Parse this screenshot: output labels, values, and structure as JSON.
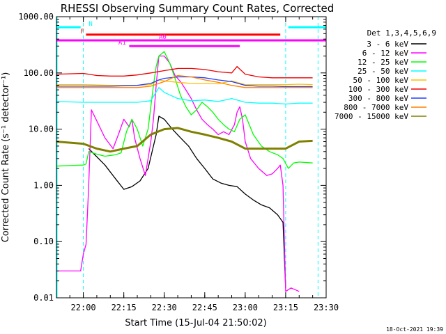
{
  "chart_data": {
    "type": "line",
    "title": "RHESSI Observing Summary Count Rates, Corrected",
    "xlabel": "Start Time (15-Jul-04 21:50:02)",
    "ylabel": "Corrected Count Rate (s⁻¹ detector⁻¹)",
    "yscale": "log",
    "ylim": [
      0.01,
      1000
    ],
    "xlim": [
      "21:50:02",
      "23:30"
    ],
    "x_ticks": [
      "22:00",
      "22:15",
      "22:30",
      "22:45",
      "23:00",
      "23:15",
      "23:30"
    ],
    "y_ticks": [
      "1000.00",
      "100.00",
      "10.00",
      "1.00",
      "0.10",
      "0.01"
    ],
    "legend_title": "Det 1,3,4,5,6,9",
    "legend_position": "right",
    "grid": false,
    "series": [
      {
        "name": "3 - 6 keV",
        "color": "#000000",
        "x": [
          "21:50",
          "22:00",
          "22:01",
          "22:02",
          "22:04",
          "22:08",
          "22:12",
          "22:15",
          "22:18",
          "22:21",
          "22:24",
          "22:27",
          "22:28",
          "22:30",
          "22:33",
          "22:36",
          "22:39",
          "22:42",
          "22:45",
          "22:48",
          "22:51",
          "22:54",
          "22:57",
          "23:00",
          "23:03",
          "23:06",
          "23:09",
          "23:12",
          "23:14",
          "23:15"
        ],
        "values": [
          null,
          null,
          null,
          4.5,
          3.6,
          2.3,
          1.3,
          0.85,
          0.95,
          1.2,
          2.0,
          8,
          17,
          15,
          10,
          7,
          5,
          3,
          2,
          1.3,
          1.1,
          1.0,
          0.95,
          0.7,
          0.55,
          0.45,
          0.4,
          0.3,
          0.22,
          0.015
        ]
      },
      {
        "name": "6 - 12 keV",
        "color": "#ff00ff",
        "x": [
          "21:50",
          "21:59",
          "22:00",
          "22:01",
          "22:02",
          "22:03",
          "22:05",
          "22:08",
          "22:11",
          "22:13",
          "22:15",
          "22:17",
          "22:18",
          "22:19",
          "22:21",
          "22:23",
          "22:25",
          "22:26",
          "22:27",
          "22:28",
          "22:30",
          "22:32",
          "22:34",
          "22:36",
          "22:38",
          "22:40",
          "22:42",
          "22:44",
          "22:46",
          "22:48",
          "22:50",
          "22:52",
          "22:54",
          "22:56",
          "22:57",
          "22:58",
          "22:59",
          "23:00",
          "23:02",
          "23:05",
          "23:08",
          "23:10",
          "23:12",
          "23:13",
          "23:14",
          "23:15",
          "23:17",
          "23:20"
        ],
        "values": [
          0.03,
          0.03,
          0.06,
          0.09,
          1.0,
          22,
          14,
          7,
          4.5,
          8,
          15,
          11,
          15,
          7,
          3.0,
          1.5,
          6,
          15,
          60,
          200,
          200,
          150,
          90,
          70,
          50,
          35,
          22,
          15,
          12,
          10,
          8,
          9,
          8,
          12,
          20,
          25,
          15,
          6,
          3,
          2.0,
          1.5,
          1.6,
          2.0,
          2.3,
          1.0,
          0.013,
          0.015,
          0.013
        ]
      },
      {
        "name": "12 - 25 keV",
        "color": "#00ff00",
        "x": [
          "21:50",
          "22:00",
          "22:01",
          "22:02",
          "22:05",
          "22:08",
          "22:12",
          "22:14",
          "22:16",
          "22:18",
          "22:20",
          "22:22",
          "22:24",
          "22:25",
          "22:26",
          "22:27",
          "22:28",
          "22:30",
          "22:32",
          "22:34",
          "22:36",
          "22:38",
          "22:40",
          "22:42",
          "22:44",
          "22:46",
          "22:48",
          "22:50",
          "22:52",
          "22:54",
          "22:56",
          "22:58",
          "23:00",
          "23:03",
          "23:06",
          "23:09",
          "23:12",
          "23:14",
          "23:16",
          "23:18",
          "23:20",
          "23:25"
        ],
        "values": [
          2.2,
          2.3,
          2.4,
          4.0,
          3.6,
          3.3,
          3.5,
          3.8,
          9,
          15,
          10,
          5,
          10,
          25,
          60,
          130,
          200,
          240,
          150,
          80,
          40,
          25,
          18,
          22,
          30,
          25,
          20,
          15,
          12,
          10,
          9,
          15,
          18,
          8,
          5,
          4,
          3.5,
          3.0,
          2.0,
          2.5,
          2.6,
          2.5
        ]
      },
      {
        "name": "25 - 50 keV",
        "color": "#00ffff",
        "x": [
          "21:50",
          "22:00",
          "22:10",
          "22:20",
          "22:25",
          "22:28",
          "22:30",
          "22:35",
          "22:40",
          "22:45",
          "22:50",
          "22:55",
          "23:00",
          "23:05",
          "23:10",
          "23:15",
          "23:20",
          "23:25"
        ],
        "values": [
          31,
          30,
          30,
          30,
          32,
          55,
          45,
          35,
          32,
          33,
          31,
          35,
          30,
          29,
          29,
          28,
          29,
          29
        ]
      },
      {
        "name": "50 - 100 keV",
        "color": "#ffbf00",
        "x": [
          "21:50",
          "22:00",
          "22:10",
          "22:20",
          "22:25",
          "22:28",
          "22:30",
          "22:35",
          "22:40",
          "22:45",
          "22:50",
          "22:55",
          "23:00",
          "23:05",
          "23:10",
          "23:15",
          "23:20",
          "23:25"
        ],
        "values": [
          62,
          62,
          60,
          60,
          62,
          75,
          72,
          68,
          65,
          65,
          64,
          72,
          62,
          62,
          62,
          62,
          63,
          62
        ]
      },
      {
        "name": "100 - 300 keV",
        "color": "#ee0000",
        "x": [
          "21:50",
          "22:00",
          "22:05",
          "22:10",
          "22:15",
          "22:20",
          "22:25",
          "22:30",
          "22:35",
          "22:40",
          "22:45",
          "22:50",
          "22:55",
          "22:57",
          "23:00",
          "23:05",
          "23:10",
          "23:15",
          "23:20",
          "23:25"
        ],
        "values": [
          95,
          98,
          90,
          88,
          88,
          92,
          100,
          110,
          120,
          120,
          115,
          105,
          100,
          130,
          95,
          85,
          82,
          82,
          82,
          82
        ]
      },
      {
        "name": "300 - 800 keV",
        "color": "#1f3fff",
        "x": [
          "21:50",
          "22:00",
          "22:10",
          "22:20",
          "22:25",
          "22:28",
          "22:30",
          "22:35",
          "22:40",
          "22:45",
          "22:50",
          "22:55",
          "23:00",
          "23:05",
          "23:10",
          "23:15",
          "23:20",
          "23:25"
        ],
        "values": [
          58,
          58,
          58,
          60,
          65,
          75,
          80,
          85,
          85,
          82,
          75,
          70,
          60,
          58,
          58,
          57,
          57,
          57
        ]
      },
      {
        "name": "800 - 7000 keV",
        "color": "#ff8000",
        "x": [
          "21:50",
          "22:00",
          "22:10",
          "22:20",
          "22:25",
          "22:30",
          "22:35",
          "22:40",
          "22:45",
          "22:50",
          "22:55",
          "23:00",
          "23:05",
          "23:10",
          "23:15",
          "23:20",
          "23:25"
        ],
        "values": [
          55,
          55,
          55,
          55,
          58,
          70,
          90,
          85,
          75,
          68,
          60,
          55,
          55,
          55,
          55,
          55,
          55
        ]
      },
      {
        "name": "7000 - 15000 keV",
        "color": "#808000",
        "x": [
          "21:50",
          "22:00",
          "22:05",
          "22:10",
          "22:15",
          "22:20",
          "22:25",
          "22:30",
          "22:35",
          "22:40",
          "22:45",
          "22:50",
          "22:55",
          "23:00",
          "23:05",
          "23:10",
          "23:15",
          "23:20",
          "23:25"
        ],
        "values": [
          6.0,
          5.5,
          4.5,
          4.0,
          4.5,
          5,
          8,
          10,
          10.5,
          9,
          8,
          7,
          6,
          4.5,
          4.5,
          4.5,
          4.5,
          6,
          6.2
        ]
      }
    ],
    "flags": [
      {
        "label": "N",
        "color": "#00ffff",
        "y": 650,
        "segments": [
          [
            "21:50",
            "21:59"
          ],
          [
            "23:16",
            "23:30"
          ]
        ]
      },
      {
        "label": "F",
        "color": "#ff0000",
        "y": 480,
        "segments": [
          [
            "22:01",
            "23:13"
          ]
        ]
      },
      {
        "label": "A0",
        "color": "#ff00ff",
        "y": 380,
        "segments": [
          [
            "21:50",
            "23:30"
          ]
        ]
      },
      {
        "label": "A1",
        "color": "#ff00ff",
        "y": 300,
        "segments": [
          [
            "22:17",
            "22:58"
          ]
        ]
      }
    ],
    "vertical_markers": {
      "color": "#00ffff",
      "times": [
        "22:00",
        "23:15",
        "23:27"
      ]
    }
  },
  "footer": "18-Oct-2021 19:39"
}
